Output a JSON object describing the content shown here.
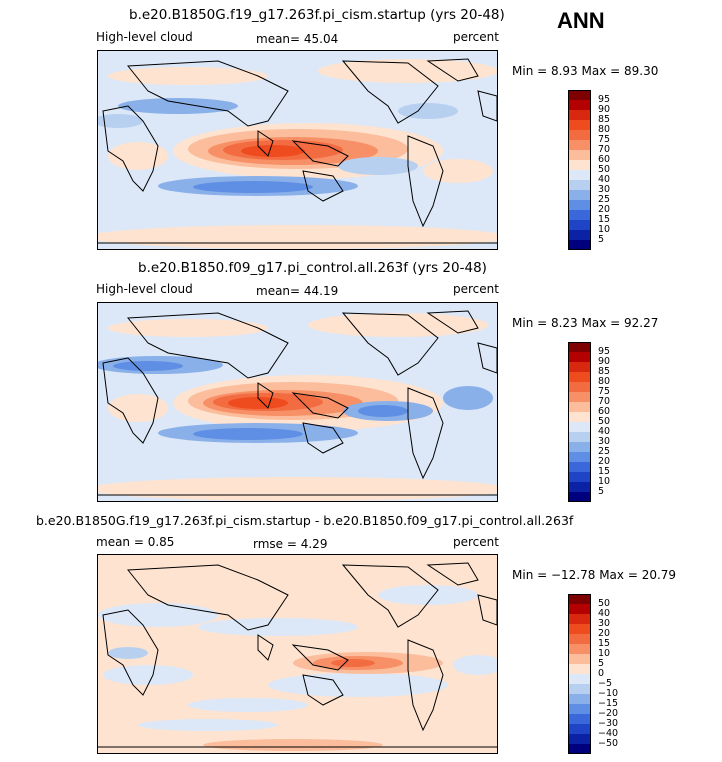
{
  "season": "ANN",
  "panels": [
    {
      "title": "b.e20.B1850G.f19_g17.263f.pi_cism.startup (yrs 20-48)",
      "left": "High-level cloud",
      "center": "mean=  45.04",
      "units": "percent",
      "minmax": "Min =   8.93 Max =  89.30",
      "levels": [
        "95",
        "90",
        "85",
        "80",
        "75",
        "70",
        "60",
        "50",
        "40",
        "30",
        "25",
        "20",
        "15",
        "10",
        "5"
      ]
    },
    {
      "title": "b.e20.B1850.f09_g17.pi_control.all.263f (yrs 20-48)",
      "left": "High-level cloud",
      "center": "mean=  44.19",
      "units": "percent",
      "minmax": "Min =   8.23 Max =  92.27",
      "levels": [
        "95",
        "90",
        "85",
        "80",
        "75",
        "70",
        "60",
        "50",
        "40",
        "30",
        "25",
        "20",
        "15",
        "10",
        "5"
      ]
    },
    {
      "title": "b.e20.B1850G.f19_g17.263f.pi_cism.startup - b.e20.B1850.f09_g17.pi_control.all.263f",
      "left": "mean =   0.85",
      "center": "rmse =   4.29",
      "units": "percent",
      "minmax": "Min = −12.78 Max =  20.79",
      "levels": [
        "50",
        "40",
        "30",
        "20",
        "15",
        "10",
        "5",
        "0",
        "−5",
        "−10",
        "−15",
        "−20",
        "−30",
        "−40",
        "−50"
      ]
    }
  ],
  "colors": {
    "scale": [
      "#7f0000",
      "#b30000",
      "#d8280f",
      "#ee4b1e",
      "#f36b40",
      "#f79066",
      "#fbbd9b",
      "#fde3d0",
      "#dce8f7",
      "#b8d0f0",
      "#8ab0ea",
      "#5f8fe4",
      "#3a68da",
      "#1f45c6",
      "#0a22a3",
      "#00007f"
    ]
  }
}
